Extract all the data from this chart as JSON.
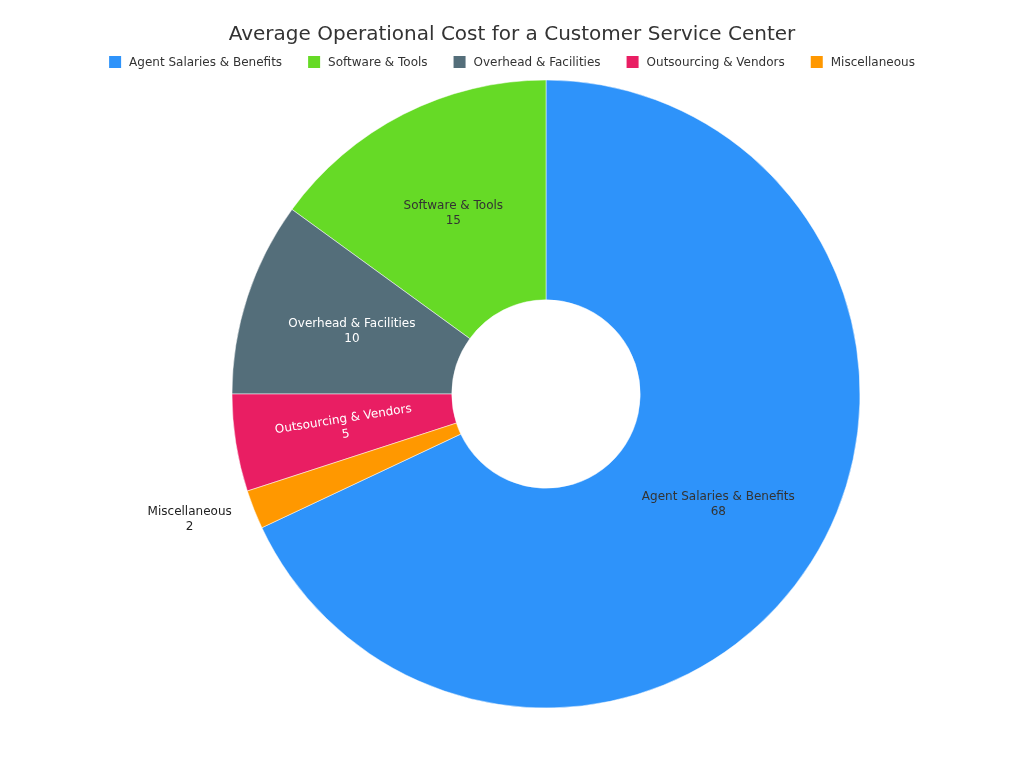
{
  "chart_data": {
    "type": "donut",
    "title": "Average Operational Cost for a Customer Service Center",
    "categories": [
      "Agent Salaries & Benefits",
      "Software & Tools",
      "Overhead & Facilities",
      "Outsourcing & Vendors",
      "Miscellaneous"
    ],
    "values": [
      68,
      15,
      10,
      5,
      2
    ],
    "colors": [
      "#2e93fa",
      "#66da26",
      "#546e7a",
      "#e91e63",
      "#ff9800"
    ],
    "data_labels": true,
    "legend": "top"
  }
}
